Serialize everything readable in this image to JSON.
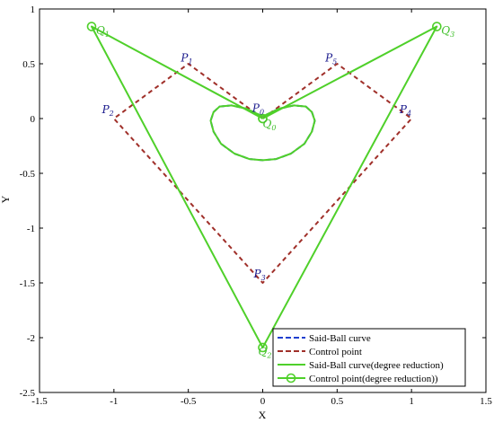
{
  "chart_data": {
    "type": "line",
    "xlabel": "X",
    "ylabel": "Y",
    "xlim": [
      -1.5,
      1.5
    ],
    "ylim": [
      -2.5,
      1
    ],
    "xticks": [
      -1.5,
      -1,
      -0.5,
      0,
      0.5,
      1,
      1.5
    ],
    "xtick_labels": [
      "-1.5",
      "-1",
      "-0.5",
      "0",
      "0.5",
      "1",
      "1.5"
    ],
    "yticks": [
      -2.5,
      -2,
      -1.5,
      -1,
      -0.5,
      0,
      0.5,
      1
    ],
    "ytick_labels": [
      "-2.5",
      "-2",
      "-1.5",
      "-1",
      "-0.5",
      "0",
      "0.5",
      "1"
    ],
    "grid": false,
    "legend_position": "bottom-right",
    "series": [
      {
        "name": "Said-Ball curve",
        "style": "dashed",
        "color": "#1f3fcf",
        "x": [
          0,
          -0.11,
          -0.21,
          -0.29,
          -0.33,
          -0.35,
          -0.33,
          -0.28,
          -0.19,
          -0.09,
          0,
          0.09,
          0.19,
          0.28,
          0.33,
          0.35,
          0.33,
          0.29,
          0.21,
          0.11,
          0
        ],
        "y": [
          0.02,
          0.09,
          0.12,
          0.11,
          0.06,
          -0.02,
          -0.12,
          -0.23,
          -0.32,
          -0.37,
          -0.38,
          -0.37,
          -0.32,
          -0.23,
          -0.12,
          -0.02,
          0.06,
          0.11,
          0.12,
          0.09,
          0.02
        ]
      },
      {
        "name": "Control point",
        "style": "dashed",
        "color": "#a0302a",
        "x": [
          0,
          -0.5,
          -1,
          0,
          1,
          0.5,
          0
        ],
        "y": [
          0,
          0.5,
          0,
          -1.5,
          0,
          0.5,
          0
        ]
      },
      {
        "name": "Said-Ball curve(degree reduction)",
        "style": "solid",
        "color": "#4fd02a",
        "x": [
          0,
          -0.11,
          -0.21,
          -0.29,
          -0.33,
          -0.35,
          -0.33,
          -0.28,
          -0.19,
          -0.09,
          0,
          0.09,
          0.19,
          0.28,
          0.33,
          0.35,
          0.33,
          0.29,
          0.21,
          0.11,
          0
        ],
        "y": [
          0.02,
          0.09,
          0.12,
          0.11,
          0.06,
          -0.02,
          -0.12,
          -0.23,
          -0.32,
          -0.37,
          -0.38,
          -0.37,
          -0.32,
          -0.23,
          -0.12,
          -0.02,
          0.06,
          0.11,
          0.12,
          0.09,
          0.02
        ]
      },
      {
        "name": "Control point(degree reduction))",
        "style": "solid-marker",
        "color": "#4fd02a",
        "x": [
          0,
          -1.15,
          0,
          1.17,
          0
        ],
        "y": [
          0,
          0.84,
          -2.09,
          0.84,
          0
        ]
      }
    ],
    "point_labels": [
      {
        "text": "P",
        "sub": "1",
        "x": -0.55,
        "y": 0.52
      },
      {
        "text": "P",
        "sub": "2",
        "x": -1.08,
        "y": 0.05
      },
      {
        "text": "P",
        "sub": "3",
        "x": -0.06,
        "y": -1.45
      },
      {
        "text": "P",
        "sub": "4",
        "x": 0.92,
        "y": 0.05
      },
      {
        "text": "P",
        "sub": "5",
        "x": 0.42,
        "y": 0.52
      },
      {
        "text": "P",
        "sub": "0",
        "x": -0.07,
        "y": 0.06
      },
      {
        "text": "Q",
        "sub": "1",
        "x": -1.12,
        "y": 0.77
      },
      {
        "text": "Q",
        "sub": "2",
        "x": -0.03,
        "y": -2.16
      },
      {
        "text": "Q",
        "sub": "3",
        "x": 1.2,
        "y": 0.77
      },
      {
        "text": "Q",
        "sub": "0",
        "x": 0.0,
        "y": -0.08
      }
    ]
  }
}
